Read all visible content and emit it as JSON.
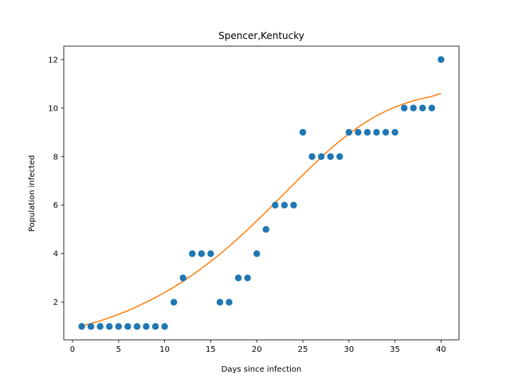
{
  "chart_data": {
    "type": "scatter",
    "title": "Spencer,Kentucky",
    "xlabel": "Days since infection",
    "ylabel": "Population infected",
    "xlim": [
      -0.95,
      41.95
    ],
    "ylim": [
      0.45,
      12.55
    ],
    "xticks": [
      0,
      5,
      10,
      15,
      20,
      25,
      30,
      35,
      40
    ],
    "yticks": [
      2,
      4,
      6,
      8,
      10,
      12
    ],
    "grid": false,
    "colors": {
      "points": "#1f77b4",
      "fit": "#ff7f0e"
    },
    "series": [
      {
        "kind": "points",
        "x": [
          1,
          2,
          3,
          4,
          5,
          6,
          7,
          8,
          9,
          10,
          11,
          12,
          13,
          14,
          15,
          16,
          17,
          18,
          19,
          20,
          21,
          22,
          23,
          24,
          25,
          26,
          27,
          28,
          29,
          30,
          31,
          32,
          33,
          34,
          35,
          36,
          37,
          38,
          39,
          40
        ],
        "y": [
          1,
          1,
          1,
          1,
          1,
          1,
          1,
          1,
          1,
          1,
          2,
          3,
          4,
          4,
          4,
          2,
          2,
          3,
          3,
          4,
          5,
          6,
          6,
          6,
          9,
          8,
          8,
          8,
          8,
          9,
          9,
          9,
          9,
          9,
          9,
          10,
          10,
          10,
          10,
          12
        ]
      },
      {
        "kind": "fit-line",
        "x": [
          1,
          2,
          3,
          4,
          5,
          6,
          7,
          8,
          9,
          10,
          11,
          12,
          13,
          14,
          15,
          16,
          17,
          18,
          19,
          20,
          21,
          22,
          23,
          24,
          25,
          26,
          27,
          28,
          29,
          30,
          31,
          32,
          33,
          34,
          35,
          36,
          37,
          38,
          39,
          40
        ],
        "y": [
          1.02,
          1.12,
          1.23,
          1.36,
          1.5,
          1.65,
          1.82,
          2.0,
          2.19,
          2.4,
          2.62,
          2.86,
          3.12,
          3.39,
          3.68,
          3.98,
          4.3,
          4.64,
          4.99,
          5.35,
          5.72,
          6.1,
          6.48,
          6.86,
          7.24,
          7.61,
          7.97,
          8.32,
          8.64,
          8.94,
          9.21,
          9.46,
          9.68,
          9.87,
          10.04,
          10.18,
          10.3,
          10.4,
          10.48,
          10.6
        ]
      }
    ]
  }
}
